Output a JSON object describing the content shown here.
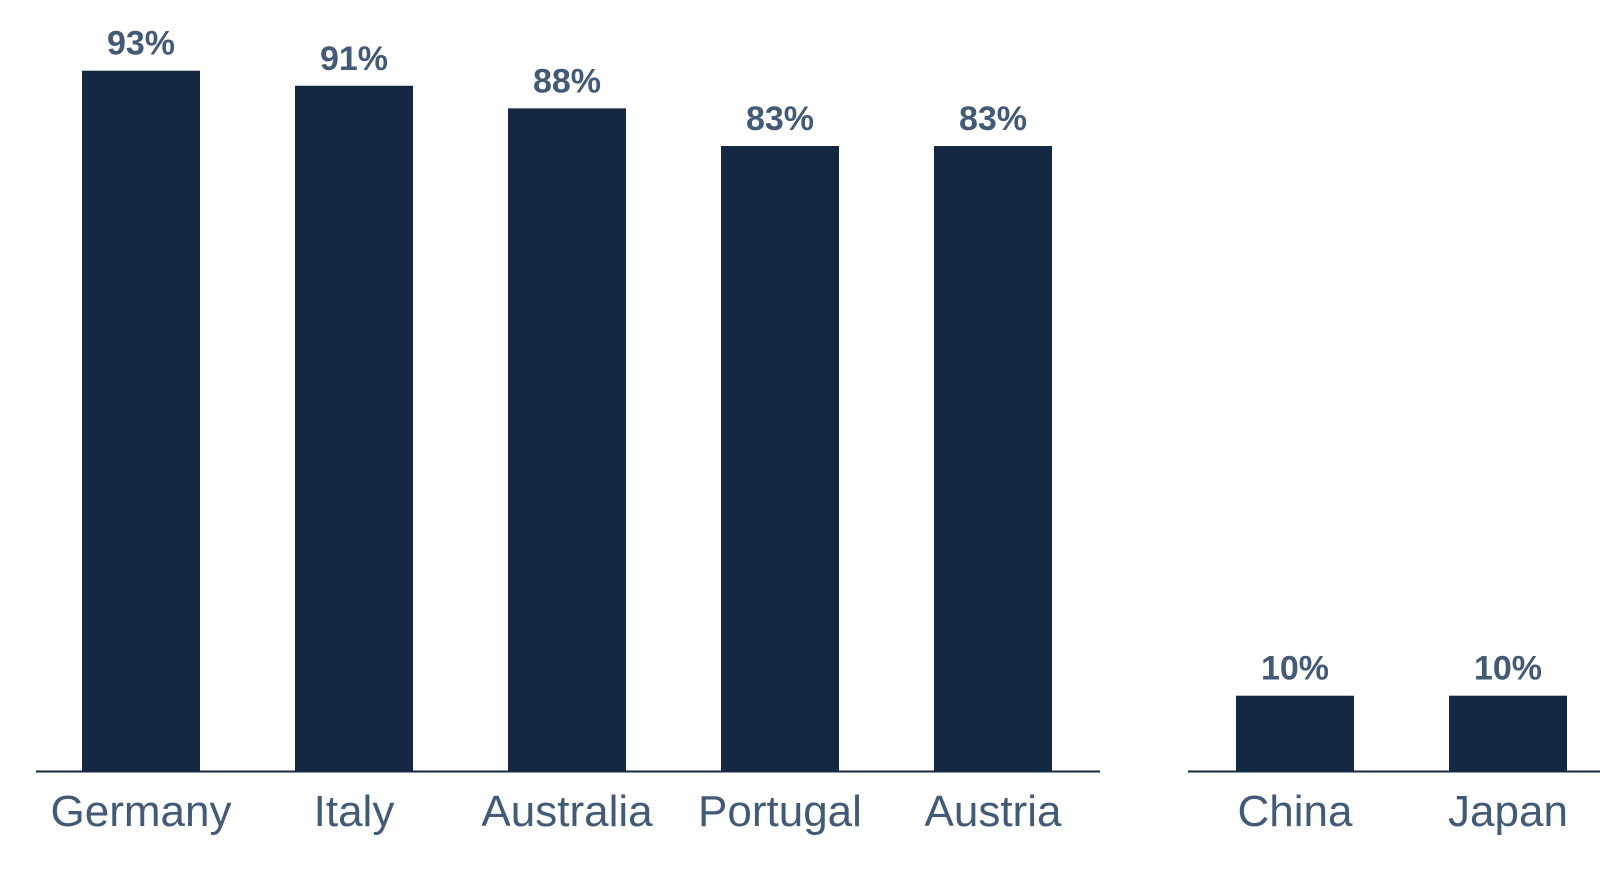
{
  "chart_data": {
    "type": "bar",
    "groups": [
      {
        "categories": [
          "Germany",
          "Italy",
          "Australia",
          "Portugal",
          "Austria"
        ],
        "values": [
          93,
          91,
          88,
          83,
          83
        ],
        "value_labels": [
          "93%",
          "91%",
          "88%",
          "83%",
          "83%"
        ]
      },
      {
        "categories": [
          "China",
          "Japan"
        ],
        "values": [
          10,
          10
        ],
        "value_labels": [
          "10%",
          "10%"
        ]
      }
    ],
    "title": "",
    "xlabel": "",
    "ylabel": "",
    "ylim": [
      0,
      100
    ],
    "grid": false,
    "legend": "none",
    "colors": {
      "bar": "#142743",
      "value_label": "#435a77",
      "category_label": "#435a77",
      "axis": "#142743"
    }
  }
}
